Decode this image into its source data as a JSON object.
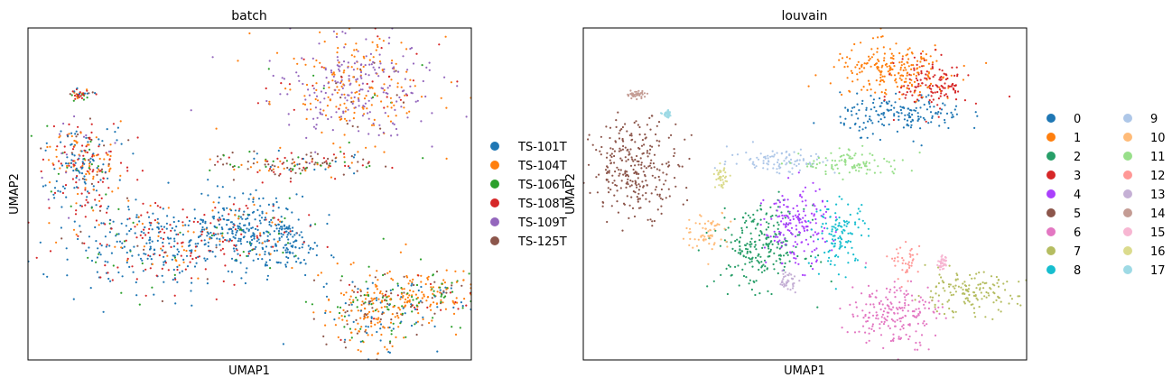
{
  "chart_data": [
    {
      "type": "scatter",
      "title": "batch",
      "xlabel": "UMAP1",
      "ylabel": "UMAP2",
      "grid": false,
      "ticks_shown": false,
      "xlim": [
        0,
        100
      ],
      "ylim": [
        0,
        100
      ],
      "legend": {
        "placement": "right",
        "entries": [
          {
            "name": "TS-101T",
            "color": "#1f77b4"
          },
          {
            "name": "TS-104T",
            "color": "#ff7f0e"
          },
          {
            "name": "TS-106T",
            "color": "#2ca02c"
          },
          {
            "name": "TS-108T",
            "color": "#d62728"
          },
          {
            "name": "TS-109T",
            "color": "#9467bd"
          },
          {
            "name": "TS-125T",
            "color": "#8c564b"
          }
        ]
      },
      "clusters": [
        {
          "x": 73,
          "y": 82,
          "sx": 9,
          "sy": 8,
          "w": [
            0,
            38,
            2,
            5,
            50,
            5
          ]
        },
        {
          "x": 12,
          "y": 59,
          "sx": 5,
          "sy": 7,
          "w": [
            30,
            25,
            5,
            30,
            5,
            5
          ]
        },
        {
          "x": 12,
          "y": 80,
          "sx": 1.5,
          "sy": 0.8,
          "w": [
            20,
            20,
            10,
            40,
            0,
            10
          ]
        },
        {
          "x": 31,
          "y": 35,
          "sx": 11,
          "sy": 7,
          "w": [
            55,
            10,
            5,
            28,
            0,
            2
          ]
        },
        {
          "x": 48,
          "y": 40,
          "sx": 5,
          "sy": 5,
          "w": [
            80,
            5,
            5,
            10,
            0,
            0
          ]
        },
        {
          "x": 58,
          "y": 35,
          "sx": 4,
          "sy": 5,
          "w": [
            80,
            5,
            5,
            10,
            0,
            0
          ]
        },
        {
          "x": 60,
          "y": 59,
          "sx": 9,
          "sy": 2,
          "w": [
            10,
            15,
            15,
            25,
            0,
            35
          ]
        },
        {
          "x": 78,
          "y": 15,
          "sx": 6,
          "sy": 6,
          "w": [
            15,
            45,
            20,
            5,
            0,
            15
          ]
        },
        {
          "x": 91,
          "y": 20,
          "sx": 5,
          "sy": 4,
          "w": [
            15,
            50,
            20,
            5,
            0,
            10
          ]
        }
      ]
    },
    {
      "type": "scatter",
      "title": "louvain",
      "xlabel": "UMAP1",
      "ylabel": "UMAP2",
      "grid": false,
      "ticks_shown": false,
      "xlim": [
        0,
        100
      ],
      "ylim": [
        0,
        100
      ],
      "legend": {
        "placement": "right",
        "columns": 2,
        "entries": [
          {
            "name": "0",
            "color": "#1f77b4"
          },
          {
            "name": "1",
            "color": "#ff7f0e"
          },
          {
            "name": "2",
            "color": "#279e68"
          },
          {
            "name": "3",
            "color": "#d62728"
          },
          {
            "name": "4",
            "color": "#aa40fc"
          },
          {
            "name": "5",
            "color": "#8c564b"
          },
          {
            "name": "6",
            "color": "#e377c2"
          },
          {
            "name": "7",
            "color": "#b5bd61"
          },
          {
            "name": "8",
            "color": "#17becf"
          },
          {
            "name": "9",
            "color": "#aec7e8"
          },
          {
            "name": "10",
            "color": "#ffbb78"
          },
          {
            "name": "11",
            "color": "#98df8a"
          },
          {
            "name": "12",
            "color": "#ff9896"
          },
          {
            "name": "13",
            "color": "#c5b0d5"
          },
          {
            "name": "14",
            "color": "#c49c94"
          },
          {
            "name": "15",
            "color": "#f7b6d2"
          },
          {
            "name": "16",
            "color": "#dbdb8d"
          },
          {
            "name": "17",
            "color": "#9edae5"
          }
        ]
      },
      "clusters": [
        {
          "label": "0",
          "x": 72,
          "y": 74,
          "sx": 7,
          "sy": 3
        },
        {
          "label": "1",
          "x": 70,
          "y": 87,
          "sx": 7,
          "sy": 4
        },
        {
          "label": "2",
          "x": 40,
          "y": 34,
          "sx": 5,
          "sy": 6
        },
        {
          "label": "3",
          "x": 79,
          "y": 83,
          "sx": 4,
          "sy": 4
        },
        {
          "label": "4",
          "x": 48,
          "y": 40,
          "sx": 3.5,
          "sy": 6
        },
        {
          "label": "5",
          "x": 12,
          "y": 58,
          "sx": 5,
          "sy": 7
        },
        {
          "label": "6",
          "x": 70,
          "y": 14,
          "sx": 5,
          "sy": 5
        },
        {
          "label": "7",
          "x": 86,
          "y": 20,
          "sx": 6,
          "sy": 3
        },
        {
          "label": "8",
          "x": 58,
          "y": 38,
          "sx": 3,
          "sy": 5
        },
        {
          "label": "9",
          "x": 45,
          "y": 60,
          "sx": 6,
          "sy": 2
        },
        {
          "label": "10",
          "x": 28,
          "y": 39,
          "sx": 2.5,
          "sy": 3
        },
        {
          "label": "11",
          "x": 61,
          "y": 59,
          "sx": 6,
          "sy": 2
        },
        {
          "label": "12",
          "x": 73,
          "y": 29,
          "sx": 1.5,
          "sy": 2.5
        },
        {
          "label": "13",
          "x": 46,
          "y": 24,
          "sx": 1,
          "sy": 1.5
        },
        {
          "label": "14",
          "x": 12,
          "y": 80,
          "sx": 1.2,
          "sy": 0.6
        },
        {
          "label": "15",
          "x": 81,
          "y": 29,
          "sx": 0.5,
          "sy": 1
        },
        {
          "label": "16",
          "x": 31,
          "y": 55,
          "sx": 0.6,
          "sy": 1.5
        },
        {
          "label": "17",
          "x": 19,
          "y": 74,
          "sx": 0.5,
          "sy": 0.5
        }
      ]
    }
  ]
}
